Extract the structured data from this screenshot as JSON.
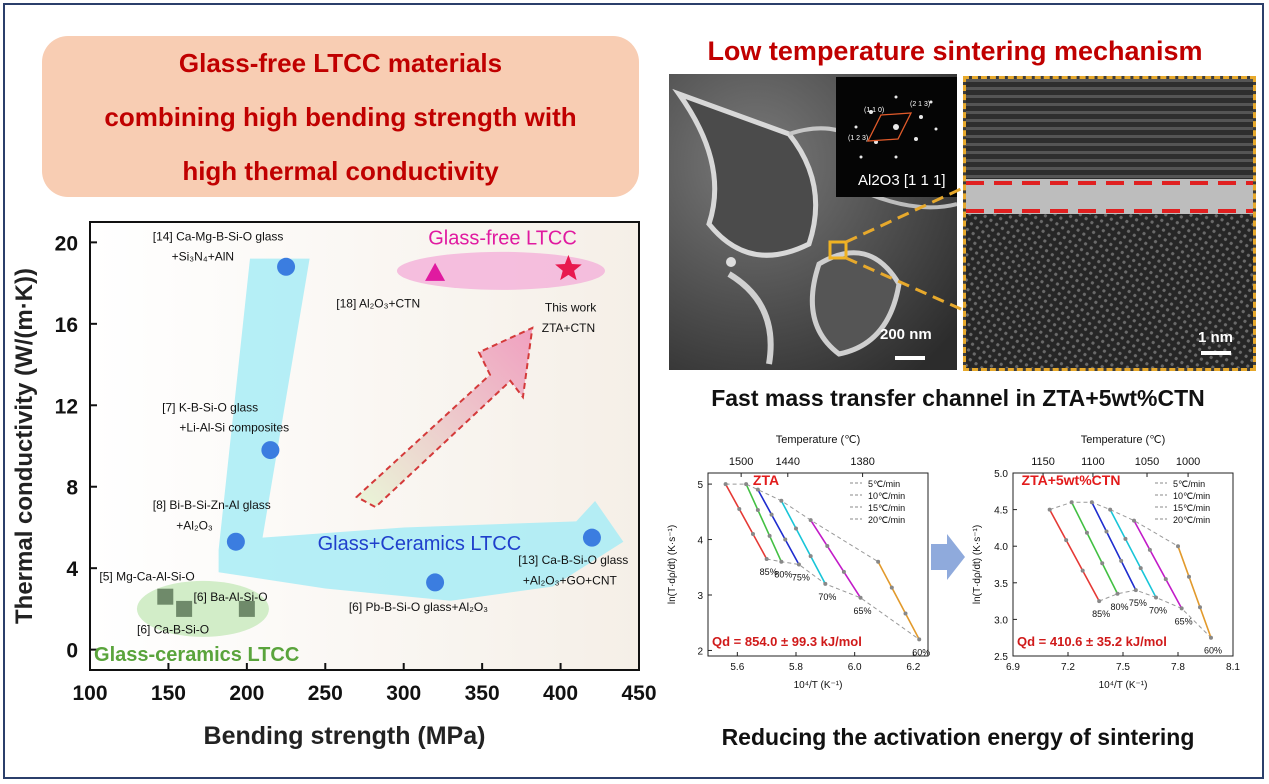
{
  "banner": {
    "line1": "Glass-free LTCC materials",
    "line2": "combining high bending strength with",
    "line3": "high thermal conductivity"
  },
  "right": {
    "sem_title": "Low temperature sintering mechanism",
    "sem_scale_left": "200 nm",
    "sem_scale_right": "1 nm",
    "inset_label": "Al2O3 [1 1 1]",
    "diffraction_labels": [
      "(1 1 0)",
      "(2 1 3)",
      "(1 2 3)"
    ],
    "fast_transfer_title": "Fast mass transfer channel in ZTA+5wt%CTN",
    "bottom_title": "Reducing the activation energy of sintering"
  },
  "colors": {
    "dark_red": "#c00000",
    "blue": "#1f3fcc",
    "green": "#5aa43c",
    "magenta": "#e01aa0",
    "marker_blue": "#3b7de0",
    "marker_green": "#6f8a6a",
    "arrow_red": "#d43a3a",
    "dash_gold": "#e7a92c"
  },
  "chart_data": [
    {
      "type": "scatter",
      "title": "",
      "xlabel": "Bending strength (MPa)",
      "ylabel": "Thermal conductivity (W/(m·K))",
      "xlim": [
        100,
        450
      ],
      "ylim": [
        -1,
        21
      ],
      "x_ticks": [
        "100",
        "150",
        "200",
        "250",
        "300",
        "350",
        "400",
        "450"
      ],
      "y_ticks": [
        "0",
        "4",
        "8",
        "12",
        "16",
        "20"
      ],
      "series": [
        {
          "name": "Glass+Ceramics LTCC",
          "points": [
            {
              "x": 225,
              "y": 18.8,
              "label1": "[14] Ca-Mg-B-Si-O glass",
              "label2": "+Si3N4+AlN"
            },
            {
              "x": 215,
              "y": 9.8,
              "label1": "[7] K-B-Si-O glass",
              "label2": "+Li-Al-Si composites"
            },
            {
              "x": 193,
              "y": 5.3,
              "label1": "[8] Bi-B-Si-Zn-Al glass",
              "label2": "+Al2O3"
            },
            {
              "x": 320,
              "y": 3.3,
              "label1": "[6] Pb-B-Si-O glass+Al2O3",
              "label2": ""
            },
            {
              "x": 420,
              "y": 5.5,
              "label1": "[13] Ca-B-Si-O glass",
              "label2": "+Al2O3+GO+CNT"
            }
          ]
        },
        {
          "name": "Glass-ceramics LTCC",
          "points": [
            {
              "x": 148,
              "y": 2.6,
              "label1": "[5] Mg-Ca-Al-Si-O",
              "label2": ""
            },
            {
              "x": 160,
              "y": 2.0,
              "label1": "[6] Ca-B-Si-O",
              "label2": ""
            },
            {
              "x": 200,
              "y": 2.0,
              "label1": "[6] Ba-Al-Si-O",
              "label2": ""
            }
          ]
        },
        {
          "name": "Glass-free LTCC",
          "points": [
            {
              "x": 320,
              "y": 18.5,
              "label1": "[18] Al2O3+CTN",
              "label2": ""
            },
            {
              "x": 405,
              "y": 18.7,
              "label1": "This work",
              "label2": "ZTA+CTN"
            }
          ]
        }
      ],
      "group_labels": {
        "glass_free": "Glass-free LTCC",
        "glass_ceramics": "Glass+Ceramics LTCC",
        "glass_ceramic": "Glass-ceramics LTCC"
      }
    },
    {
      "type": "line",
      "title": "ZTA",
      "xlabel": "10⁴/T (K⁻¹)",
      "ylabel": "ln(T·dρ/dt) (K·s⁻¹)",
      "top_xlabel": "Temperature (℃)",
      "xlim": [
        5.5,
        6.25
      ],
      "ylim": [
        1.9,
        5.2
      ],
      "x_ticks": [
        "5.6",
        "5.8",
        "6.0",
        "6.2"
      ],
      "y_ticks": [
        "2",
        "3",
        "4",
        "5"
      ],
      "top_ticks": [
        {
          "x": 5.613,
          "label": "1500"
        },
        {
          "x": 5.772,
          "label": "1440"
        },
        {
          "x": 6.027,
          "label": "1380"
        }
      ],
      "legend": [
        "5℃/min",
        "10℃/min",
        "15℃/min",
        "20℃/min"
      ],
      "series": [
        {
          "name": "85%",
          "color": "#e53935",
          "x": [
            5.56,
            5.7
          ],
          "y": [
            5.0,
            3.65
          ]
        },
        {
          "name": "80%",
          "color": "#43c043",
          "x": [
            5.63,
            5.75
          ],
          "y": [
            5.0,
            3.6
          ]
        },
        {
          "name": "75%",
          "color": "#1e2ccf",
          "x": [
            5.67,
            5.81
          ],
          "y": [
            4.9,
            3.55
          ]
        },
        {
          "name": "70%",
          "color": "#18c5d8",
          "x": [
            5.75,
            5.9
          ],
          "y": [
            4.7,
            3.2
          ]
        },
        {
          "name": "65%",
          "color": "#c21bc8",
          "x": [
            5.85,
            6.02
          ],
          "y": [
            4.35,
            2.95
          ]
        },
        {
          "name": "60%",
          "color": "#e29a2c",
          "x": [
            6.08,
            6.22
          ],
          "y": [
            3.6,
            2.2
          ]
        }
      ],
      "annotation": "Qd = 854.0 ± 99.3 kJ/mol"
    },
    {
      "type": "line",
      "title": "ZTA+5wt%CTN",
      "xlabel": "10⁴/T (K⁻¹)",
      "ylabel": "ln(T·dρ/dt) (K·s⁻¹)",
      "top_xlabel": "Temperature (℃)",
      "xlim": [
        6.9,
        8.1
      ],
      "ylim": [
        2.5,
        5.0
      ],
      "x_ticks": [
        "6.9",
        "7.2",
        "7.5",
        "7.8",
        "8.1"
      ],
      "y_ticks": [
        "2.5",
        "3.0",
        "3.5",
        "4.0",
        "4.5",
        "5.0"
      ],
      "top_ticks": [
        {
          "x": 7.064,
          "label": "1150"
        },
        {
          "x": 7.336,
          "label": "1100"
        },
        {
          "x": 7.631,
          "label": "1050"
        },
        {
          "x": 7.855,
          "label": "1000"
        }
      ],
      "legend": [
        "5℃/min",
        "10℃/min",
        "15℃/min",
        "20℃/min"
      ],
      "series": [
        {
          "name": "85%",
          "color": "#e53935",
          "x": [
            7.1,
            7.37
          ],
          "y": [
            4.5,
            3.25
          ]
        },
        {
          "name": "80%",
          "color": "#43c043",
          "x": [
            7.22,
            7.47
          ],
          "y": [
            4.6,
            3.35
          ]
        },
        {
          "name": "75%",
          "color": "#1e2ccf",
          "x": [
            7.33,
            7.57
          ],
          "y": [
            4.6,
            3.4
          ]
        },
        {
          "name": "70%",
          "color": "#18c5d8",
          "x": [
            7.43,
            7.68
          ],
          "y": [
            4.5,
            3.3
          ]
        },
        {
          "name": "65%",
          "color": "#c21bc8",
          "x": [
            7.56,
            7.82
          ],
          "y": [
            4.35,
            3.15
          ]
        },
        {
          "name": "60%",
          "color": "#e29a2c",
          "x": [
            7.8,
            7.98
          ],
          "y": [
            4.0,
            2.75
          ]
        }
      ],
      "annotation": "Qd = 410.6 ± 35.2 kJ/mol"
    }
  ]
}
